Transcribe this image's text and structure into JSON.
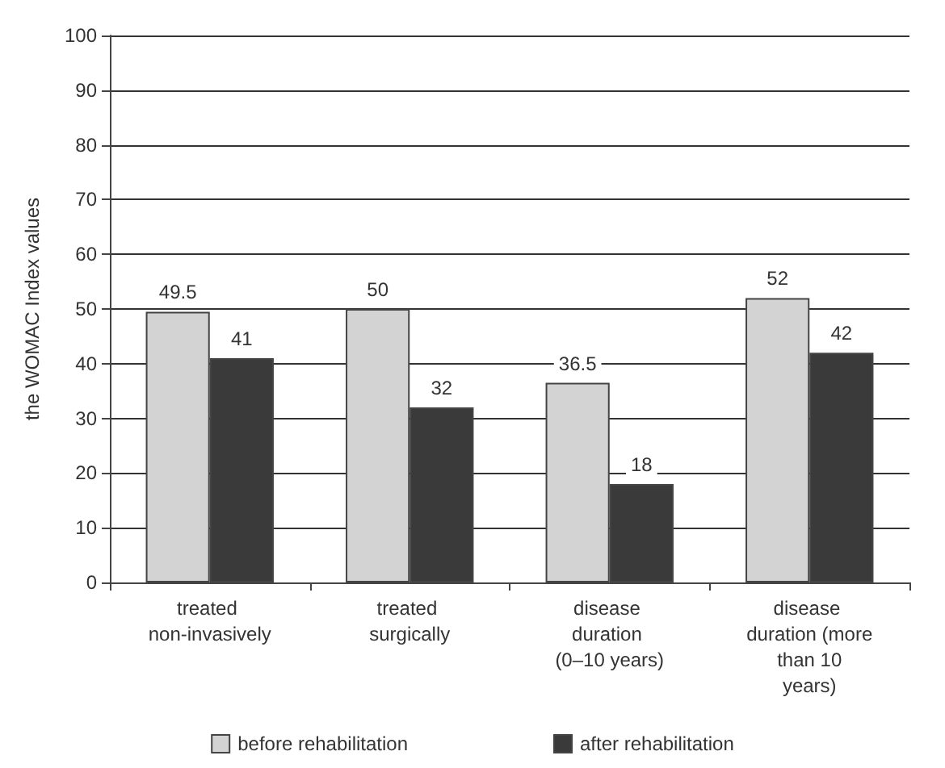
{
  "chart_data": {
    "type": "bar",
    "ylabel": "the WOMAC Index values",
    "categories": [
      "treated non-invasively",
      "treated surgically",
      "disease duration (0–10 years)",
      "disease duration (more than 10 years)"
    ],
    "series": [
      {
        "name": "before rehabilitation",
        "color": "#d3d3d3",
        "values": [
          49.5,
          50,
          36.5,
          52
        ]
      },
      {
        "name": "after rehabilitation",
        "color": "#3a3a3a",
        "values": [
          41,
          32,
          18,
          42
        ]
      }
    ],
    "ylim": [
      0,
      100
    ],
    "yticks": [
      0,
      10,
      20,
      30,
      40,
      50,
      60,
      70,
      80,
      90,
      100
    ],
    "grid": "y",
    "legend": "bottom",
    "data_labels": true
  }
}
